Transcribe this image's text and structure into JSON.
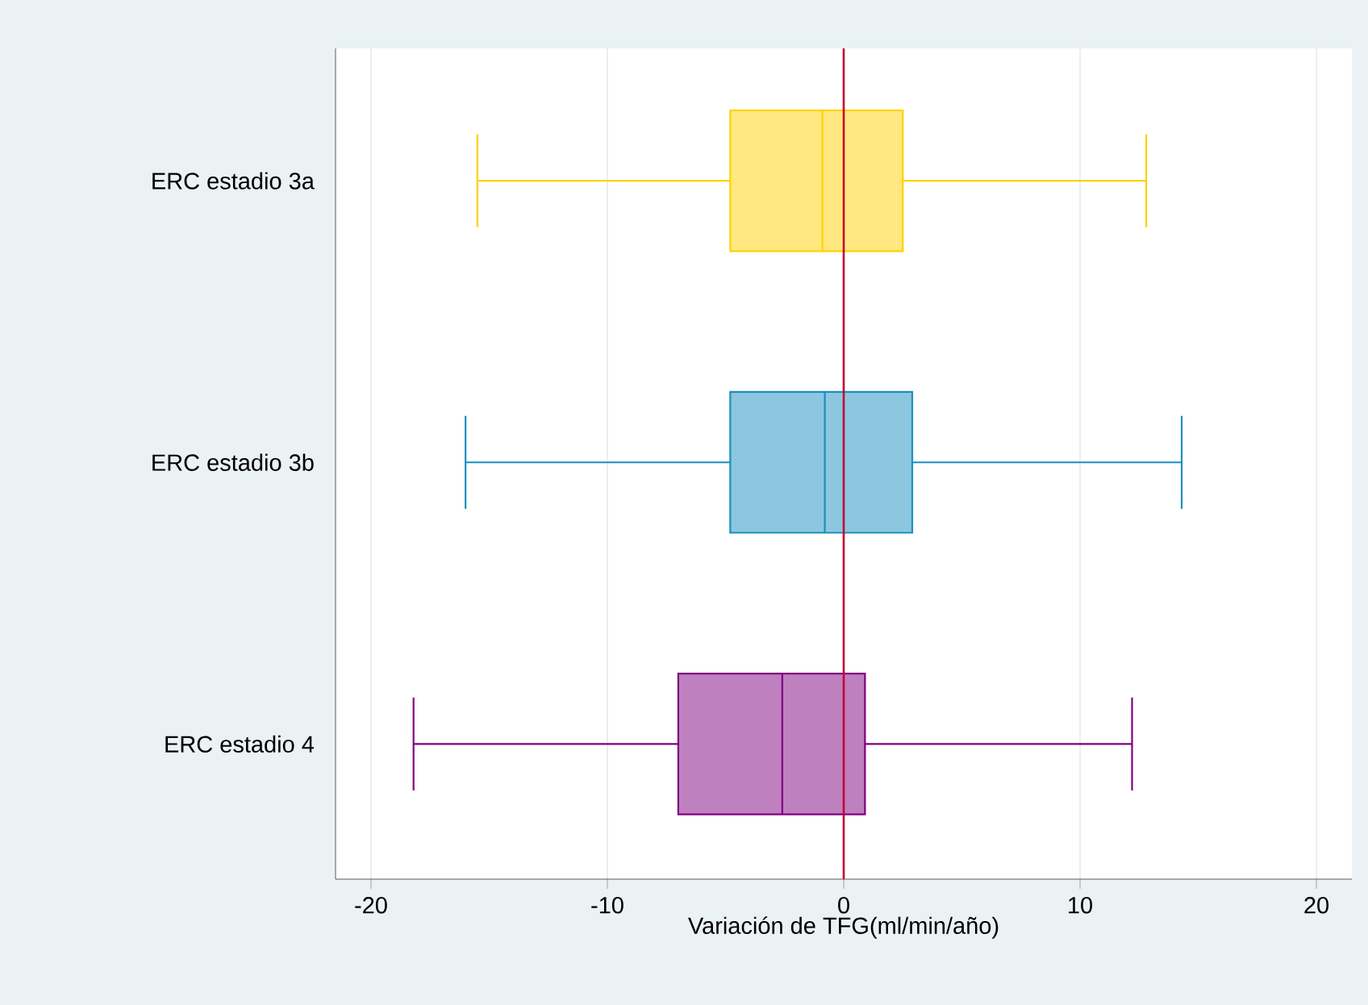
{
  "chart_data": {
    "type": "box",
    "xlabel": "Variación de TFG(ml/min/año)",
    "orientation": "horizontal",
    "categories": [
      "ERC estadio 3a",
      "ERC estadio 3b",
      "ERC estadio 4"
    ],
    "colors": [
      "#ffd200",
      "#1a8fbf",
      "#800080"
    ],
    "boxes": [
      {
        "low": -15.5,
        "q1": -4.8,
        "median": -0.9,
        "q3": 2.5,
        "high": 12.8
      },
      {
        "low": -16.0,
        "q1": -4.8,
        "median": -0.8,
        "q3": 2.9,
        "high": 14.3
      },
      {
        "low": -18.2,
        "q1": -7.0,
        "median": -2.6,
        "q3": 0.9,
        "high": 12.2
      }
    ],
    "xlim": [
      -21.5,
      21.5
    ],
    "xticks": [
      -20,
      -10,
      0,
      10,
      20
    ],
    "grid": "x",
    "ref_lines": [
      {
        "axis": "x",
        "value": 0,
        "color": "#c10534"
      }
    ]
  }
}
